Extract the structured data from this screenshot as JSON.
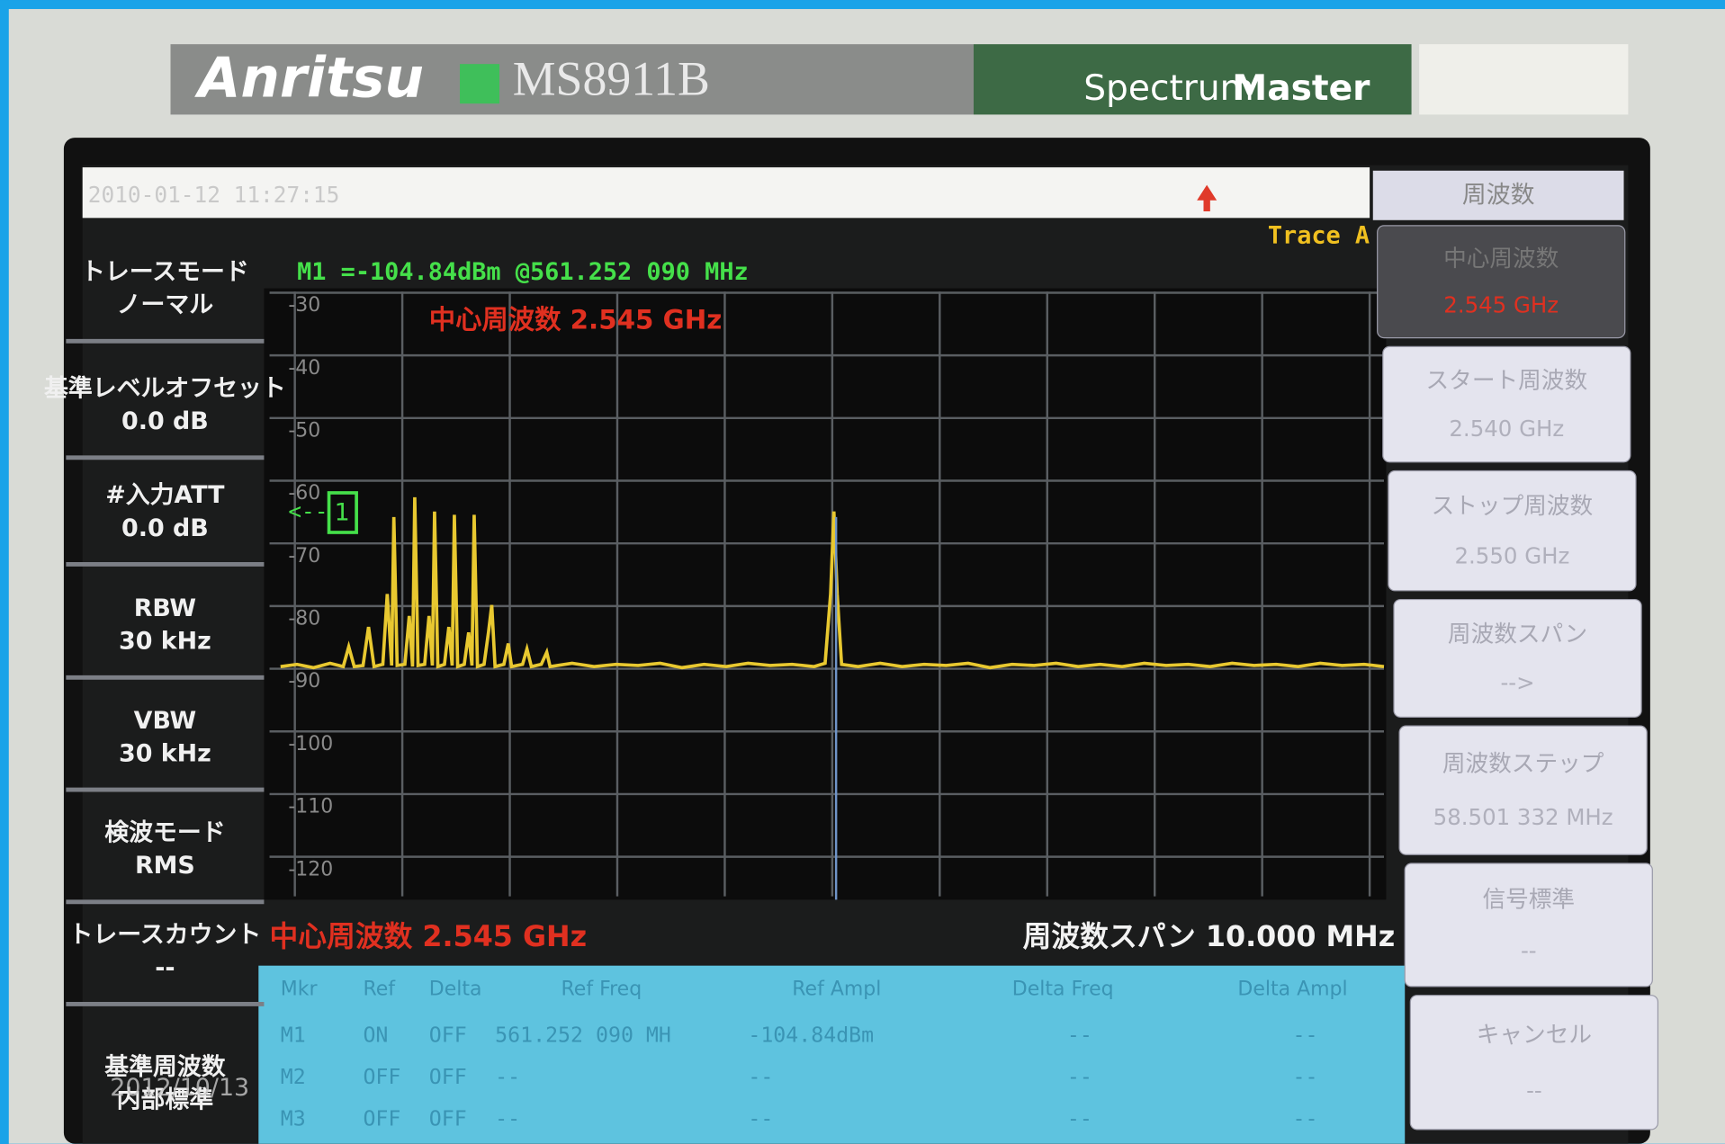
{
  "header": {
    "brand": "Anritsu",
    "model": "MS8911B",
    "product_a": "Spectrum",
    "product_b": "Master"
  },
  "status": {
    "timestamp": "2010-01-12 11:27:15",
    "trace": "Trace A"
  },
  "marker_readout": "M1 =-104.84dBm @561.252 090 MHz",
  "center_overlay": "中心周波数 2.545 GHz",
  "marker_arrow": "<--",
  "marker_flag": "1",
  "y_ticks": [
    "-30",
    "-40",
    "-50",
    "-60",
    "-70",
    "-80",
    "-90",
    "-100",
    "-110",
    "-120"
  ],
  "footer": {
    "center": "中心周波数 2.545 GHz",
    "span": "周波数スパン 10.000 MHz"
  },
  "left_panel": [
    {
      "label": "トレースモード",
      "value": "ノーマル"
    },
    {
      "label": "基準レベルオフセット",
      "value": "0.0 dB"
    },
    {
      "label": "#入力ATT",
      "value": "0.0 dB"
    },
    {
      "label": "RBW",
      "value": "30 kHz"
    },
    {
      "label": "VBW",
      "value": "30 kHz"
    },
    {
      "label": "検波モード",
      "value": "RMS"
    },
    {
      "label": "トレースカウント",
      "value": "--"
    },
    {
      "label": "基準周波数",
      "value": "内部標準"
    }
  ],
  "soft_keys": {
    "title": "周波数",
    "keys": [
      {
        "label": "中心周波数",
        "value": "2.545 GHz"
      },
      {
        "label": "スタート周波数",
        "value": "2.540 GHz"
      },
      {
        "label": "ストップ周波数",
        "value": "2.550 GHz"
      },
      {
        "label": "周波数スパン",
        "value": "-->"
      },
      {
        "label": "周波数ステップ",
        "value": "58.501 332 MHz"
      },
      {
        "label": "信号標準",
        "value": "--"
      },
      {
        "label": "キャンセル",
        "value": "--"
      }
    ]
  },
  "marker_table": {
    "header": [
      "Mkr",
      "Ref",
      "Delta",
      "Ref Freq",
      "Ref Ampl",
      "Delta Freq",
      "Delta Ampl"
    ],
    "rows": [
      [
        "M1",
        "ON",
        "OFF",
        "561.252 090 MH",
        "-104.84dBm",
        "--",
        "--"
      ],
      [
        "M2",
        "OFF",
        "OFF",
        "--",
        "--",
        "--",
        "--"
      ],
      [
        "M3",
        "OFF",
        "OFF",
        "--",
        "--",
        "--",
        "--"
      ]
    ]
  },
  "watermark": "2012/10/13"
}
